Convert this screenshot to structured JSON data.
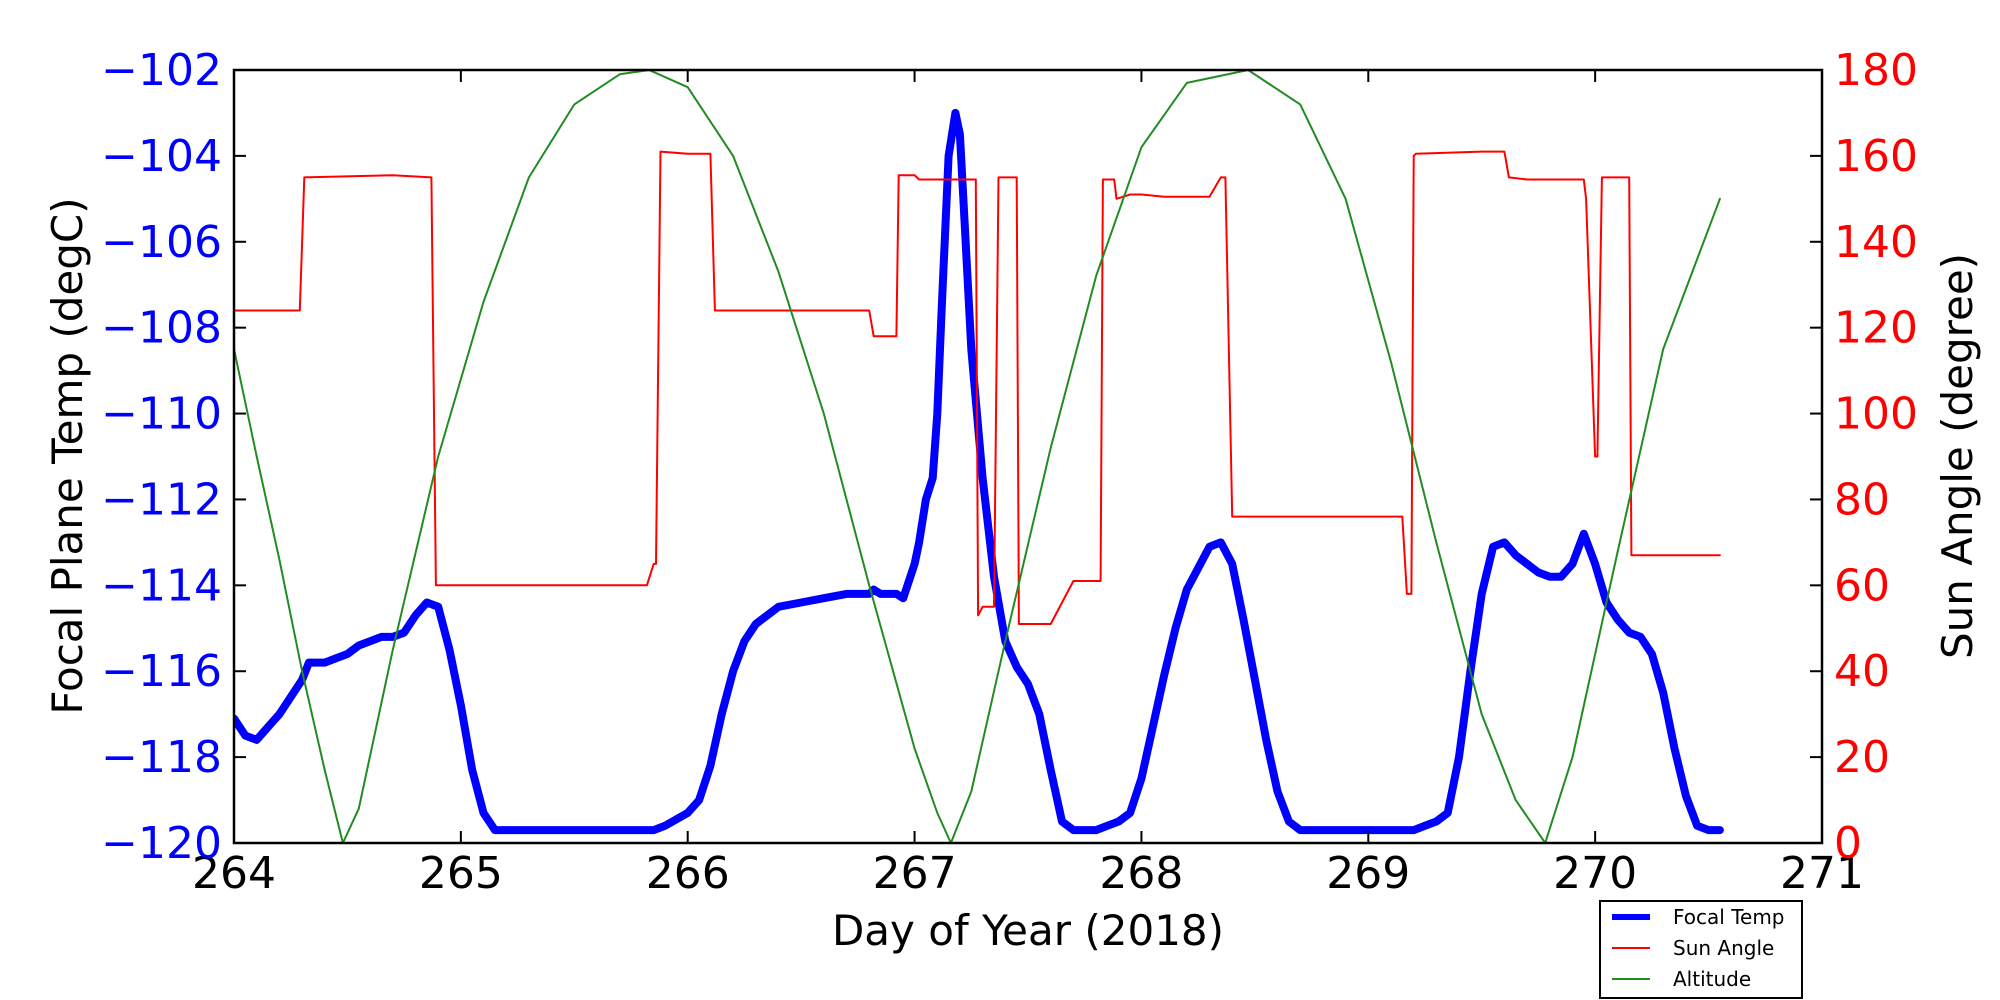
{
  "chart_data": {
    "type": "line",
    "xlabel": "Day of Year (2018)",
    "ylabel_left": "Focal Plane Temp (degC)",
    "ylabel_right": "Sun Angle (degree)",
    "xlim": [
      264,
      271
    ],
    "ylim_left": [
      -120,
      -102
    ],
    "ylim_right": [
      0,
      180
    ],
    "x_ticks": [
      "264",
      "265",
      "266",
      "267",
      "268",
      "269",
      "270",
      "271"
    ],
    "y_left_ticks": [
      "−120",
      "−118",
      "−116",
      "−114",
      "−112",
      "−110",
      "−108",
      "−106",
      "−104",
      "−102"
    ],
    "y_right_ticks": [
      "0",
      "20",
      "40",
      "60",
      "80",
      "100",
      "120",
      "140",
      "160",
      "180"
    ],
    "colors": {
      "left_axis": "#0000ff",
      "right_axis": "#ff0000"
    },
    "legend_position": "lower-right, below axes",
    "series": [
      {
        "name": "Focal Temp",
        "axis": "left",
        "color": "#0000ff",
        "x": [
          264.0,
          264.05,
          264.1,
          264.15,
          264.2,
          264.3,
          264.33,
          264.36,
          264.4,
          264.45,
          264.5,
          264.55,
          264.6,
          264.65,
          264.7,
          264.75,
          264.8,
          264.85,
          264.9,
          264.95,
          265.0,
          265.05,
          265.1,
          265.15,
          265.2,
          265.25,
          265.4,
          265.6,
          265.8,
          265.85,
          265.9,
          266.0,
          266.05,
          266.1,
          266.15,
          266.2,
          266.25,
          266.3,
          266.4,
          266.5,
          266.6,
          266.7,
          266.8,
          266.82,
          266.85,
          266.9,
          266.92,
          266.95,
          267.0,
          267.02,
          267.05,
          267.08,
          267.1,
          267.12,
          267.15,
          267.18,
          267.2,
          267.22,
          267.25,
          267.3,
          267.35,
          267.4,
          267.45,
          267.5,
          267.55,
          267.6,
          267.65,
          267.7,
          267.75,
          267.8,
          267.85,
          267.9,
          267.95,
          268.0,
          268.05,
          268.1,
          268.15,
          268.2,
          268.25,
          268.3,
          268.35,
          268.4,
          268.45,
          268.5,
          268.55,
          268.6,
          268.65,
          268.7,
          268.75,
          268.8,
          269.0,
          269.2,
          269.25,
          269.3,
          269.35,
          269.4,
          269.45,
          269.5,
          269.55,
          269.6,
          269.65,
          269.7,
          269.75,
          269.8,
          269.85,
          269.9,
          269.95,
          270.0,
          270.05,
          270.1,
          270.15,
          270.2,
          270.25,
          270.3,
          270.35,
          270.4,
          270.45,
          270.5,
          270.55
        ],
        "y": [
          -117.1,
          -117.5,
          -117.6,
          -117.3,
          -117.0,
          -116.2,
          -115.8,
          -115.8,
          -115.8,
          -115.7,
          -115.6,
          -115.4,
          -115.3,
          -115.2,
          -115.2,
          -115.1,
          -114.7,
          -114.4,
          -114.5,
          -115.5,
          -116.8,
          -118.3,
          -119.3,
          -119.7,
          -119.7,
          -119.7,
          -119.7,
          -119.7,
          -119.7,
          -119.7,
          -119.6,
          -119.3,
          -119.0,
          -118.2,
          -117.0,
          -116.0,
          -115.3,
          -114.9,
          -114.5,
          -114.4,
          -114.3,
          -114.2,
          -114.2,
          -114.1,
          -114.2,
          -114.2,
          -114.2,
          -114.3,
          -113.5,
          -113.0,
          -112.0,
          -111.5,
          -110.0,
          -107.5,
          -104.0,
          -103.0,
          -103.5,
          -105.5,
          -108.5,
          -111.5,
          -113.8,
          -115.3,
          -115.9,
          -116.3,
          -117.0,
          -118.3,
          -119.5,
          -119.7,
          -119.7,
          -119.7,
          -119.6,
          -119.5,
          -119.3,
          -118.5,
          -117.3,
          -116.1,
          -115.0,
          -114.1,
          -113.6,
          -113.1,
          -113.0,
          -113.5,
          -114.8,
          -116.2,
          -117.6,
          -118.8,
          -119.5,
          -119.7,
          -119.7,
          -119.7,
          -119.7,
          -119.7,
          -119.6,
          -119.5,
          -119.3,
          -118.0,
          -116.0,
          -114.2,
          -113.1,
          -113.0,
          -113.3,
          -113.5,
          -113.7,
          -113.8,
          -113.8,
          -113.5,
          -112.8,
          -113.5,
          -114.4,
          -114.8,
          -115.1,
          -115.2,
          -115.6,
          -116.5,
          -117.8,
          -118.9,
          -119.6,
          -119.7,
          -119.7
        ]
      },
      {
        "name": "Sun Angle",
        "axis": "right",
        "color": "#ff0000",
        "x": [
          264.0,
          264.29,
          264.31,
          264.7,
          264.87,
          264.89,
          264.9,
          265.0,
          265.8,
          265.82,
          265.85,
          265.86,
          265.88,
          266.0,
          266.1,
          266.12,
          266.2,
          266.8,
          266.82,
          266.92,
          266.93,
          267.0,
          267.02,
          267.15,
          267.27,
          267.28,
          267.3,
          267.35,
          267.37,
          267.45,
          267.46,
          267.5,
          267.52,
          267.6,
          267.7,
          267.82,
          267.83,
          267.88,
          267.89,
          267.95,
          267.97,
          268.0,
          268.1,
          268.2,
          268.3,
          268.35,
          268.37,
          268.4,
          268.43,
          268.48,
          269.0,
          269.15,
          269.17,
          269.19,
          269.2,
          269.21,
          269.5,
          269.6,
          269.62,
          269.7,
          269.9,
          269.95,
          269.96,
          270.0,
          270.01,
          270.03,
          270.04,
          270.06,
          270.15,
          270.16,
          270.2,
          270.55
        ],
        "y": [
          124,
          124,
          155,
          155.5,
          155,
          60,
          60,
          60,
          60,
          60,
          65,
          65,
          161,
          160.5,
          160.5,
          124,
          124,
          124,
          118,
          118,
          155.5,
          155.5,
          154.5,
          154.5,
          154.5,
          53,
          55,
          55,
          155,
          155,
          51,
          51,
          51,
          51,
          61,
          61,
          154.5,
          154.5,
          150,
          151,
          151,
          151,
          150.5,
          150.5,
          150.5,
          155,
          155,
          76,
          76,
          76,
          76,
          76,
          58,
          58,
          160,
          160.5,
          161,
          161,
          155,
          154.5,
          154.5,
          154.5,
          150,
          90,
          90,
          155,
          155,
          155,
          155,
          67,
          67,
          67
        ]
      },
      {
        "name": "Altitude",
        "axis": "right",
        "color": "#228b22",
        "x": [
          264.0,
          264.1,
          264.2,
          264.3,
          264.4,
          264.48,
          264.55,
          264.7,
          264.9,
          265.1,
          265.3,
          265.5,
          265.7,
          265.83,
          266.0,
          266.2,
          266.4,
          266.6,
          266.8,
          267.0,
          267.1,
          267.16,
          267.25,
          267.4,
          267.6,
          267.8,
          268.0,
          268.2,
          268.47,
          268.7,
          268.9,
          269.1,
          269.3,
          269.5,
          269.65,
          269.78,
          269.9,
          270.1,
          270.3,
          270.55
        ],
        "y": [
          115,
          90,
          66,
          40,
          17,
          0,
          8,
          45,
          90,
          126,
          155,
          172,
          179,
          180,
          176,
          160,
          133,
          100,
          60,
          22,
          7,
          0,
          12,
          47,
          92,
          132,
          162,
          177,
          180,
          172,
          150,
          112,
          70,
          30,
          10,
          0,
          20,
          68,
          115,
          150
        ]
      }
    ]
  }
}
